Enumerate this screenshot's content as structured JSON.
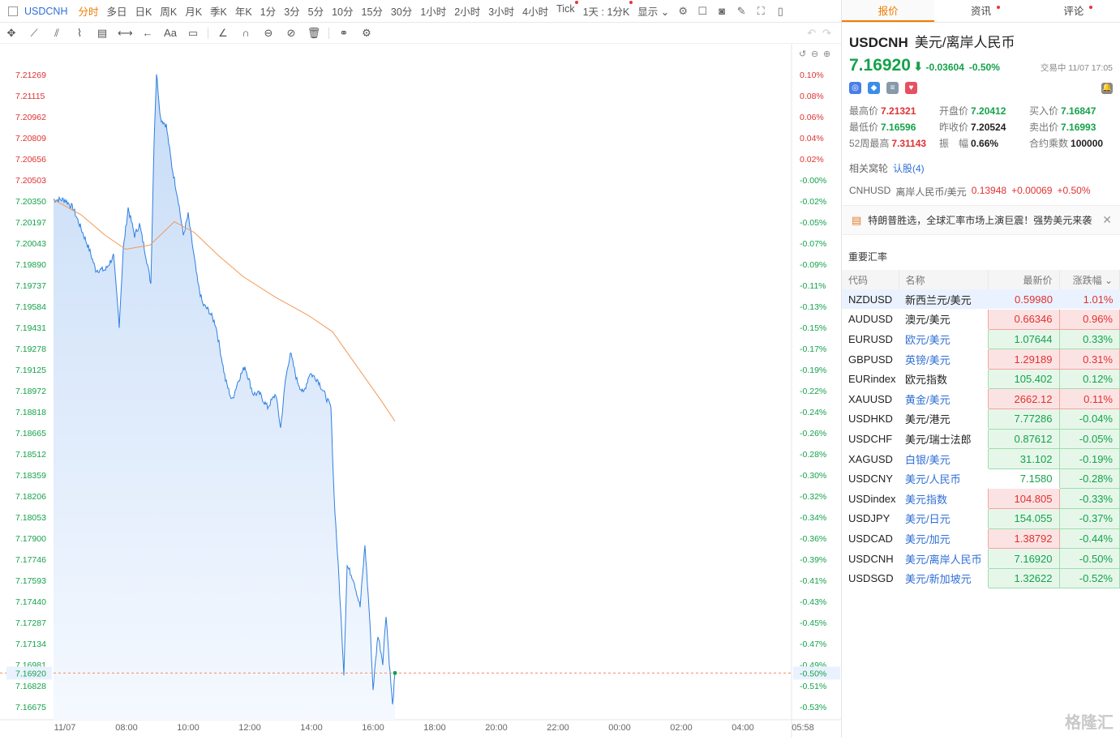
{
  "topbar": {
    "symbol": "USDCNH",
    "timeframes": [
      "分时",
      "多日",
      "日K",
      "周K",
      "月K",
      "季K",
      "年K",
      "1分",
      "3分",
      "5分",
      "10分",
      "15分",
      "30分",
      "1小时",
      "2小时",
      "3小时",
      "4小时",
      "Tick",
      "1天 : 1分K"
    ],
    "active_timeframe_index": 0,
    "display_label": "显示"
  },
  "chart_data": {
    "type": "line",
    "series": [
      {
        "values": []
      },
      {
        "values": []
      }
    ],
    "y_ticks": [
      "7.21269",
      "7.21115",
      "7.20962",
      "7.20809",
      "7.20656",
      "7.20503",
      "7.20350",
      "7.20197",
      "7.20043",
      "7.19890",
      "7.19737",
      "7.19584",
      "7.19431",
      "7.19278",
      "7.19125",
      "7.18972",
      "7.18818",
      "7.18665",
      "7.18512",
      "7.18359",
      "7.18206",
      "7.18053",
      "7.17900",
      "7.17746",
      "7.17593",
      "7.17440",
      "7.17287",
      "7.17134",
      "7.16981",
      "7.16828",
      "7.16675"
    ],
    "pct_ticks": [
      "0.10%",
      "0.08%",
      "0.06%",
      "0.04%",
      "0.02%",
      "-0.00%",
      "-0.02%",
      "-0.05%",
      "-0.07%",
      "-0.09%",
      "-0.11%",
      "-0.13%",
      "-0.15%",
      "-0.17%",
      "-0.19%",
      "-0.22%",
      "-0.24%",
      "-0.26%",
      "-0.28%",
      "-0.30%",
      "-0.32%",
      "-0.34%",
      "-0.36%",
      "-0.39%",
      "-0.41%",
      "-0.43%",
      "-0.45%",
      "-0.47%",
      "-0.49%",
      "-0.51%",
      "-0.53%"
    ],
    "x_ticks": [
      "11/07",
      "08:00",
      "10:00",
      "12:00",
      "14:00",
      "16:00",
      "18:00",
      "20:00",
      "22:00",
      "00:00",
      "02:00",
      "04:00",
      "05:58"
    ],
    "current_price_label": "7.16920",
    "current_pct_label": "-0.50%",
    "ylim": [
      7.16675,
      7.21269
    ],
    "colors": {
      "price": "#2f7fe0",
      "avg": "#f09a5a",
      "fill": "#d9e9fb",
      "axis_red": "#e03131",
      "axis_green": "#14a24b"
    }
  },
  "panel": {
    "tabs": [
      "报价",
      "资讯",
      "评论"
    ],
    "symbol": "USDCNH",
    "name": "美元/离岸人民币",
    "price": "7.16920",
    "change": "-0.03604",
    "change_pct": "-0.50%",
    "status": "交易中 11/07 17:05",
    "stats": [
      {
        "label": "最高价",
        "value": "7.21321",
        "color": "red"
      },
      {
        "label": "开盘价",
        "value": "7.20412",
        "color": "green"
      },
      {
        "label": "买入价",
        "value": "7.16847",
        "color": "green"
      },
      {
        "label": "最低价",
        "value": "7.16596",
        "color": "green"
      },
      {
        "label": "昨收价",
        "value": "7.20524",
        "color": "dark"
      },
      {
        "label": "卖出价",
        "value": "7.16993",
        "color": "green"
      },
      {
        "label": "52周最高",
        "value": "7.31143",
        "color": "red"
      },
      {
        "label": "振　幅",
        "value": "0.66%",
        "color": "dark"
      },
      {
        "label": "合约乘数",
        "value": "100000",
        "color": "dark"
      }
    ],
    "related_label": "相关窝轮",
    "related_link": "认股(4)",
    "rel_pair": {
      "code": "CNHUSD",
      "name": "离岸人民币/美元",
      "price": "0.13948",
      "change": "+0.00069",
      "pct": "+0.50%"
    },
    "news": "特朗普胜选，全球汇率市场上演巨震！强势美元来袭",
    "section_title": "重要汇率",
    "table_headers": [
      "代码",
      "名称",
      "最新价",
      "涨跌幅"
    ],
    "rates": [
      {
        "code": "NZDUSD",
        "name": "新西兰元/美元",
        "price": "0.59980",
        "pct": "1.01%",
        "dir": "up",
        "link": false,
        "boxed": false,
        "sel": true
      },
      {
        "code": "AUDUSD",
        "name": "澳元/美元",
        "price": "0.66346",
        "pct": "0.96%",
        "dir": "up",
        "link": false,
        "boxed": true
      },
      {
        "code": "EURUSD",
        "name": "欧元/美元",
        "price": "1.07644",
        "pct": "0.33%",
        "dir": "down",
        "link": true,
        "boxed": true
      },
      {
        "code": "GBPUSD",
        "name": "英镑/美元",
        "price": "1.29189",
        "pct": "0.31%",
        "dir": "up",
        "link": true,
        "boxed": true
      },
      {
        "code": "EURindex",
        "name": "欧元指数",
        "price": "105.402",
        "pct": "0.12%",
        "dir": "down",
        "link": false,
        "boxed": true
      },
      {
        "code": "XAUUSD",
        "name": "黄金/美元",
        "price": "2662.12",
        "pct": "0.11%",
        "dir": "up",
        "link": true,
        "boxed": true
      },
      {
        "code": "USDHKD",
        "name": "美元/港元",
        "price": "7.77286",
        "pct": "-0.04%",
        "dir": "down",
        "link": false,
        "boxed": true
      },
      {
        "code": "USDCHF",
        "name": "美元/瑞士法郎",
        "price": "0.87612",
        "pct": "-0.05%",
        "dir": "down",
        "link": false,
        "boxed": true
      },
      {
        "code": "XAGUSD",
        "name": "白银/美元",
        "price": "31.102",
        "pct": "-0.19%",
        "dir": "down",
        "link": true,
        "boxed": true
      },
      {
        "code": "USDCNY",
        "name": "美元/人民币",
        "price": "7.1580",
        "pct": "-0.28%",
        "dir": "down",
        "link": true,
        "boxed": false
      },
      {
        "code": "USDindex",
        "name": "美元指数",
        "price": "104.805",
        "pct": "-0.33%",
        "dir": "upprice",
        "link": true,
        "boxed": true
      },
      {
        "code": "USDJPY",
        "name": "美元/日元",
        "price": "154.055",
        "pct": "-0.37%",
        "dir": "down",
        "link": true,
        "boxed": true
      },
      {
        "code": "USDCAD",
        "name": "美元/加元",
        "price": "1.38792",
        "pct": "-0.44%",
        "dir": "upprice",
        "link": true,
        "boxed": true
      },
      {
        "code": "USDCNH",
        "name": "美元/离岸人民币",
        "price": "7.16920",
        "pct": "-0.50%",
        "dir": "down",
        "link": true,
        "boxed": true
      },
      {
        "code": "USDSGD",
        "name": "美元/新加坡元",
        "price": "1.32622",
        "pct": "-0.52%",
        "dir": "down",
        "link": true,
        "boxed": true
      }
    ],
    "logo": "格隆汇"
  }
}
